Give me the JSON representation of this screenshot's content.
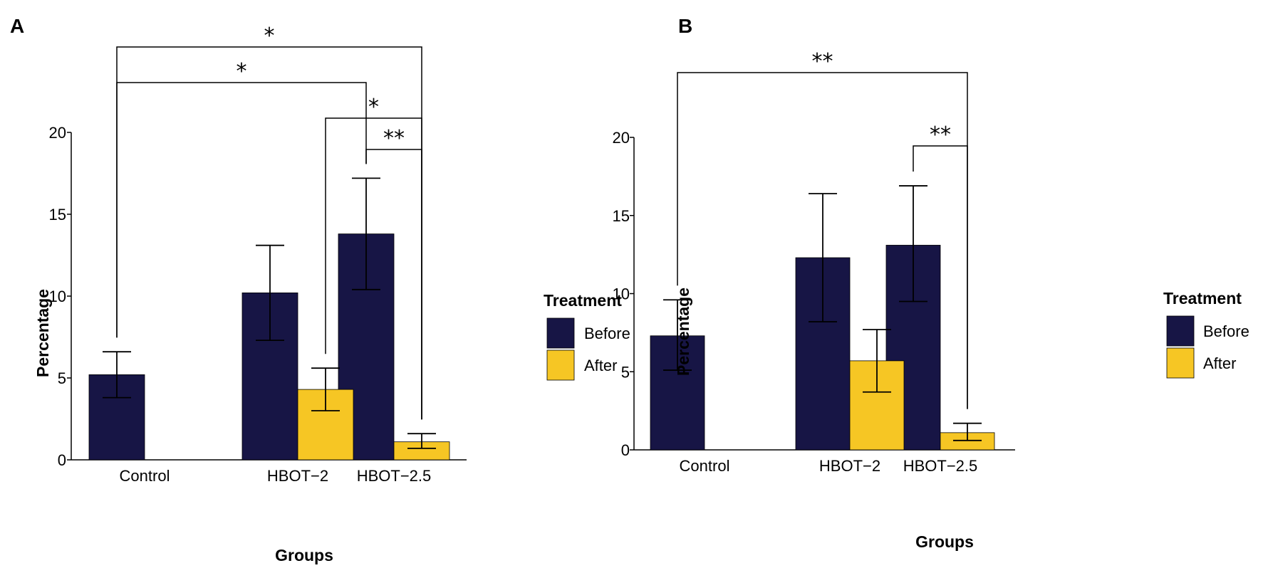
{
  "colors": {
    "before": "#171545",
    "after": "#F6C624"
  },
  "chart_data": [
    {
      "type": "bar",
      "panel_label": "A",
      "xlabel": "Groups",
      "ylabel": "Percentage",
      "ylim": [
        0,
        20
      ],
      "yticks": [
        "0",
        "5",
        "10",
        "15",
        "20"
      ],
      "categories": [
        "Control",
        "HBOT−2",
        "HBOT−2.5"
      ],
      "series": [
        {
          "name": "Before",
          "values": [
            5.2,
            10.2,
            13.8
          ],
          "err_low": [
            3.8,
            7.3,
            10.4
          ],
          "err_high": [
            6.6,
            13.1,
            17.2
          ]
        },
        {
          "name": "After",
          "values": [
            null,
            4.3,
            1.1
          ],
          "err_low": [
            null,
            3.0,
            0.7
          ],
          "err_high": [
            null,
            5.6,
            1.6
          ]
        }
      ],
      "legend": {
        "title": "Treatment",
        "entries": [
          "Before",
          "After"
        ]
      },
      "significance": [
        {
          "from": [
            0,
            0
          ],
          "to": [
            2,
            1
          ],
          "label": "*"
        },
        {
          "from": [
            0,
            0
          ],
          "to": [
            2,
            0
          ],
          "label": "*"
        },
        {
          "from": [
            1,
            1
          ],
          "to": [
            2,
            1
          ],
          "label": "*"
        },
        {
          "from": [
            2,
            0
          ],
          "to": [
            2,
            1
          ],
          "label": "**"
        }
      ]
    },
    {
      "type": "bar",
      "panel_label": "B",
      "xlabel": "Groups",
      "ylabel": "Percentage",
      "ylim": [
        0,
        20
      ],
      "yticks": [
        "0",
        "5",
        "10",
        "15",
        "20"
      ],
      "categories": [
        "Control",
        "HBOT−2",
        "HBOT−2.5"
      ],
      "series": [
        {
          "name": "Before",
          "values": [
            7.3,
            12.3,
            13.1
          ],
          "err_low": [
            5.1,
            8.2,
            9.5
          ],
          "err_high": [
            9.6,
            16.4,
            16.9
          ]
        },
        {
          "name": "After",
          "values": [
            null,
            5.7,
            1.1
          ],
          "err_low": [
            null,
            3.7,
            0.6
          ],
          "err_high": [
            null,
            7.7,
            1.7
          ]
        }
      ],
      "legend": {
        "title": "Treatment",
        "entries": [
          "Before",
          "After"
        ]
      },
      "significance": [
        {
          "from": [
            0,
            0
          ],
          "to": [
            2,
            1
          ],
          "label": "**"
        },
        {
          "from": [
            2,
            0
          ],
          "to": [
            2,
            1
          ],
          "label": "**"
        }
      ]
    }
  ]
}
